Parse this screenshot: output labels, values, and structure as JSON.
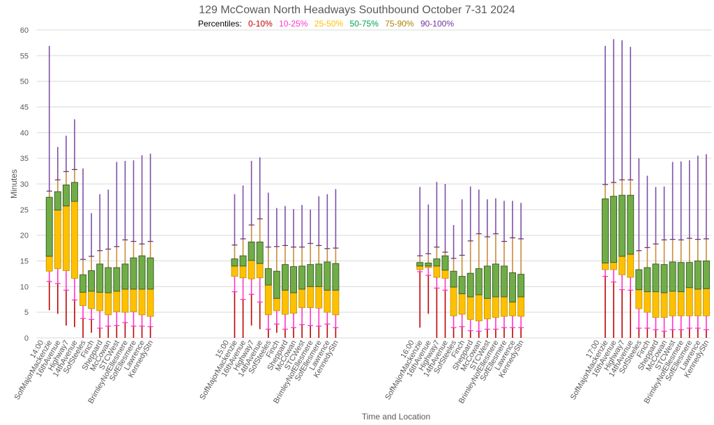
{
  "chart_data": {
    "type": "box",
    "title": "129 McCowan North Headways Southbound October 7-31 2024",
    "ylabel": "Minutes",
    "xlabel": "Time and Location",
    "ylim": [
      0,
      60
    ],
    "yticks": [
      0,
      5,
      10,
      15,
      20,
      25,
      30,
      35,
      40,
      45,
      50,
      55,
      60
    ],
    "grid": true,
    "legend": {
      "label": "Percentiles:",
      "placement": "top",
      "items": [
        {
          "name": "0-10%",
          "color": "#c00000"
        },
        {
          "name": "10-25%",
          "color": "#ff33cc"
        },
        {
          "name": "25-50%",
          "color": "#ffc000"
        },
        {
          "name": "50-75%",
          "color": "#00a050"
        },
        {
          "name": "75-90%",
          "color": "#b08000"
        },
        {
          "name": "90-100%",
          "color": "#7030a0"
        }
      ]
    },
    "segment_colors": {
      "p0_p10": "#c00000",
      "p10_p25": "#ff33cc",
      "p25_p50": "#ffc000",
      "p50_p75": "#70ad47",
      "p75_p90": "#c98a3a",
      "p90_p100": "#7f4fa8"
    },
    "locations": [
      "SofMajorMackenzie",
      "16thAvenue",
      "Highway7",
      "14thAvenue",
      "SofSteeles",
      "Finch",
      "Sheppard",
      "McCowan",
      "STCWest",
      "BrimleyNofEllesmere",
      "SofEllesmere",
      "Lawrence",
      "KennedyStn"
    ],
    "value_order": [
      "min",
      "p10",
      "p25",
      "p50",
      "p75",
      "p90",
      "max"
    ],
    "groups": [
      {
        "time": "14:00",
        "stats": [
          [
            5.4,
            11.0,
            13.0,
            15.9,
            27.4,
            28.6,
            56.9
          ],
          [
            4.7,
            10.6,
            13.5,
            24.9,
            28.5,
            30.8,
            37.2
          ],
          [
            2.4,
            9.3,
            13.1,
            25.7,
            29.8,
            32.4,
            39.4
          ],
          [
            2.1,
            7.4,
            11.6,
            26.6,
            30.3,
            32.8,
            42.6
          ],
          [
            0,
            3.8,
            6.3,
            8.9,
            12.3,
            15.3,
            33.0
          ],
          [
            1.0,
            3.6,
            5.7,
            9.1,
            13.1,
            15.9,
            24.3
          ],
          [
            0,
            1.9,
            5.3,
            8.9,
            14.4,
            17.0,
            28.0
          ],
          [
            0,
            2.3,
            4.5,
            8.8,
            13.7,
            17.3,
            28.9
          ],
          [
            0,
            2.4,
            5.1,
            9.1,
            13.7,
            17.8,
            34.3
          ],
          [
            0,
            3.0,
            5.0,
            9.5,
            14.4,
            19.1,
            34.5
          ],
          [
            0,
            2.3,
            5.1,
            9.5,
            15.6,
            18.8,
            34.6
          ],
          [
            0,
            2.3,
            4.5,
            9.5,
            16.0,
            18.3,
            35.6
          ],
          [
            0,
            2.2,
            4.2,
            9.5,
            15.6,
            18.8,
            35.9
          ]
        ]
      },
      {
        "time": "15:00",
        "stats": [
          [
            0,
            9.0,
            12.0,
            14.0,
            15.4,
            18.1,
            28.0
          ],
          [
            0,
            7.5,
            11.7,
            14.0,
            16.0,
            19.3,
            29.7
          ],
          [
            2.4,
            8.5,
            11.5,
            15.1,
            18.7,
            22.0,
            34.5
          ],
          [
            1.7,
            7.0,
            11.7,
            14.5,
            18.7,
            23.2,
            35.2
          ],
          [
            0,
            1.7,
            4.5,
            10.3,
            13.5,
            17.7,
            28.3
          ],
          [
            1.0,
            2.7,
            5.3,
            7.7,
            13.0,
            17.8,
            25.3
          ],
          [
            0,
            1.7,
            4.6,
            9.3,
            14.3,
            18.0,
            25.7
          ],
          [
            0,
            2.0,
            4.8,
            8.8,
            13.9,
            17.7,
            25.1
          ],
          [
            0,
            2.6,
            5.9,
            9.5,
            14.0,
            17.7,
            25.9
          ],
          [
            0,
            2.4,
            5.9,
            10.0,
            14.3,
            18.4,
            25.0
          ],
          [
            0,
            2.3,
            5.8,
            10.0,
            14.4,
            18.0,
            27.6
          ],
          [
            0,
            2.7,
            5.0,
            9.3,
            14.8,
            17.4,
            28.0
          ],
          [
            0,
            2.0,
            4.5,
            9.3,
            14.5,
            17.5,
            29.0
          ]
        ]
      },
      {
        "time": "16:00",
        "stats": [
          [
            2.0,
            12.9,
            13.3,
            14.0,
            14.7,
            16.0,
            29.4
          ],
          [
            4.7,
            12.2,
            13.7,
            14.0,
            14.6,
            16.4,
            26.0
          ],
          [
            0,
            9.7,
            11.8,
            14.0,
            15.4,
            17.7,
            30.4
          ],
          [
            0,
            9.3,
            11.6,
            13.2,
            16.0,
            16.7,
            30.0
          ],
          [
            0,
            2.0,
            4.3,
            9.9,
            13.0,
            15.5,
            22.0
          ],
          [
            0,
            2.2,
            4.6,
            8.6,
            12.0,
            16.1,
            27.0
          ],
          [
            0,
            1.4,
            3.6,
            8.0,
            12.6,
            18.9,
            29.5
          ],
          [
            0,
            1.3,
            3.3,
            8.4,
            13.5,
            20.3,
            28.9
          ],
          [
            0,
            1.7,
            3.7,
            7.7,
            14.0,
            19.7,
            27.0
          ],
          [
            0,
            1.7,
            4.0,
            8.0,
            14.4,
            20.3,
            27.2
          ],
          [
            0,
            2.0,
            4.2,
            8.0,
            14.0,
            18.8,
            26.7
          ],
          [
            0,
            2.0,
            4.3,
            7.0,
            12.7,
            19.5,
            26.7
          ],
          [
            0,
            2.0,
            4.2,
            8.0,
            12.4,
            19.3,
            26.3
          ]
        ]
      },
      {
        "time": "17:00",
        "stats": [
          [
            0,
            12.0,
            13.3,
            14.6,
            27.1,
            29.9,
            56.9
          ],
          [
            0,
            10.9,
            13.3,
            14.7,
            27.6,
            30.3,
            58.2
          ],
          [
            0,
            9.4,
            12.3,
            15.9,
            27.8,
            30.8,
            58.0
          ],
          [
            0,
            9.3,
            11.8,
            16.3,
            27.8,
            30.8,
            56.7
          ],
          [
            0,
            1.9,
            5.7,
            9.4,
            13.3,
            17.0,
            35.0
          ],
          [
            0,
            1.9,
            5.0,
            9.0,
            13.7,
            17.6,
            31.6
          ],
          [
            0,
            1.6,
            4.0,
            9.0,
            14.4,
            18.3,
            29.4
          ],
          [
            0,
            1.3,
            4.0,
            8.8,
            14.3,
            19.1,
            29.5
          ],
          [
            0,
            1.6,
            4.3,
            9.1,
            14.8,
            19.2,
            34.3
          ],
          [
            0,
            1.6,
            4.3,
            9.0,
            14.7,
            19.1,
            34.4
          ],
          [
            0,
            1.9,
            4.3,
            9.8,
            14.7,
            19.4,
            34.6
          ],
          [
            0,
            1.9,
            4.3,
            9.5,
            15.0,
            19.2,
            35.5
          ],
          [
            0,
            1.6,
            4.3,
            9.6,
            15.0,
            19.3,
            35.8
          ]
        ]
      }
    ]
  }
}
